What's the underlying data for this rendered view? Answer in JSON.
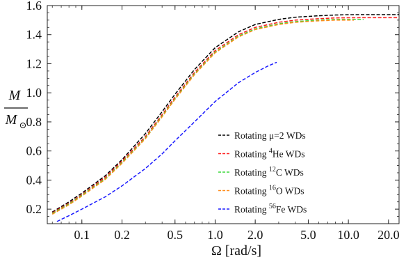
{
  "chart_data": {
    "type": "line",
    "xlabel": "Ω [rad/s]",
    "ylabel": {
      "numerator": "M",
      "denominator": "M",
      "denominator_subscript": "⊙"
    },
    "x_scale": "log",
    "xlim": [
      0.055,
      24
    ],
    "ylim": [
      0.1,
      1.6
    ],
    "x_ticks": [
      0.1,
      0.2,
      0.5,
      1.0,
      2.0,
      5.0,
      10.0,
      20.0
    ],
    "x_tick_labels": [
      "0.1",
      "0.2",
      "0.5",
      "1.0",
      "2.0",
      "5.0",
      "10.0",
      "20.0"
    ],
    "y_ticks": [
      0.2,
      0.4,
      0.6,
      0.8,
      1.0,
      1.2,
      1.4,
      1.6
    ],
    "y_tick_labels": [
      "0.2",
      "0.4",
      "0.6",
      "0.8",
      "1.0",
      "1.2",
      "1.4",
      "1.6"
    ],
    "legend_position": "right",
    "grid": false,
    "series": [
      {
        "label_prefix": "Rotating ",
        "label_sup": "",
        "label_main": "μ=2 WDs",
        "color": "#000000",
        "x": [
          0.06,
          0.08,
          0.1,
          0.15,
          0.2,
          0.3,
          0.4,
          0.5,
          0.7,
          1.0,
          1.5,
          2.0,
          3.0,
          4.0,
          6.0,
          8.0,
          10.0,
          15.0,
          20.0,
          24.0
        ],
        "y": [
          0.18,
          0.25,
          0.31,
          0.43,
          0.54,
          0.72,
          0.87,
          0.99,
          1.16,
          1.31,
          1.42,
          1.47,
          1.505,
          1.52,
          1.53,
          1.535,
          1.537,
          1.538,
          1.538,
          1.538
        ]
      },
      {
        "label_prefix": "Rotating ",
        "label_sup": "4",
        "label_main": "He WDs",
        "color": "#ff1a1a",
        "x": [
          0.06,
          0.08,
          0.1,
          0.15,
          0.2,
          0.3,
          0.4,
          0.5,
          0.7,
          1.0,
          1.5,
          2.0,
          3.0,
          4.0,
          6.0,
          8.0,
          10.0,
          15.0,
          20.0,
          24.0
        ],
        "y": [
          0.175,
          0.24,
          0.3,
          0.42,
          0.53,
          0.7,
          0.85,
          0.97,
          1.14,
          1.29,
          1.4,
          1.45,
          1.485,
          1.5,
          1.51,
          1.515,
          1.516,
          1.517,
          1.517,
          1.517
        ]
      },
      {
        "label_prefix": "Rotating ",
        "label_sup": "12",
        "label_main": "C WDs",
        "color": "#3ad83a",
        "x": [
          0.06,
          0.08,
          0.1,
          0.15,
          0.2,
          0.3,
          0.4,
          0.5,
          0.7,
          1.0,
          1.5,
          2.0,
          3.0,
          4.0,
          6.0,
          8.0,
          10.0,
          13.0
        ],
        "y": [
          0.17,
          0.235,
          0.295,
          0.41,
          0.52,
          0.69,
          0.84,
          0.96,
          1.13,
          1.28,
          1.39,
          1.44,
          1.475,
          1.49,
          1.5,
          1.505,
          1.505,
          1.505
        ]
      },
      {
        "label_prefix": "Rotating ",
        "label_sup": "16",
        "label_main": "O WDs",
        "color": "#ff8c1a",
        "x": [
          0.06,
          0.08,
          0.1,
          0.15,
          0.2,
          0.3,
          0.4,
          0.5,
          0.7,
          1.0,
          1.5,
          2.0,
          3.0,
          4.0,
          6.0,
          8.0,
          10.0,
          11.0
        ],
        "y": [
          0.165,
          0.23,
          0.29,
          0.405,
          0.515,
          0.685,
          0.835,
          0.955,
          1.125,
          1.275,
          1.385,
          1.435,
          1.47,
          1.485,
          1.495,
          1.5,
          1.5,
          1.5
        ]
      },
      {
        "label_prefix": "Rotating ",
        "label_sup": "56",
        "label_main": "Fe  WDs",
        "color": "#1a1aff",
        "x": [
          0.065,
          0.08,
          0.1,
          0.15,
          0.2,
          0.3,
          0.4,
          0.5,
          0.7,
          1.0,
          1.5,
          2.0,
          2.5,
          2.9
        ],
        "y": [
          0.115,
          0.155,
          0.2,
          0.285,
          0.36,
          0.48,
          0.58,
          0.67,
          0.8,
          0.94,
          1.07,
          1.14,
          1.185,
          1.21
        ]
      }
    ]
  }
}
